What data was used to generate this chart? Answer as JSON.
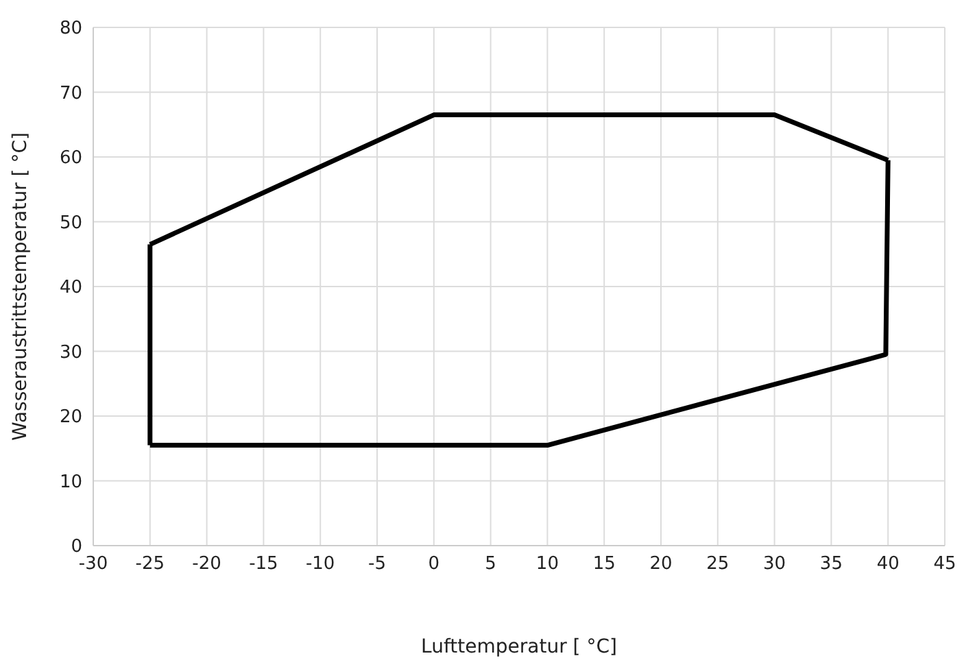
{
  "chart_data": {
    "type": "line",
    "xlabel": "Lufttemperatur [ °C]",
    "ylabel": "Wasseraustrittstemperatur [ °C]",
    "series": [
      {
        "color": "#000000",
        "x": [
          -25,
          0,
          30,
          40
        ],
        "values": [
          46.5,
          66.5,
          66.5,
          59.5
        ]
      },
      {
        "color": "#000000",
        "x": [
          -25,
          10,
          39.8,
          40
        ],
        "values": [
          15.5,
          15.5,
          29.5,
          59.5
        ]
      },
      {
        "color": "#000000",
        "x": [
          -25,
          -25
        ],
        "values": [
          15.5,
          46.5
        ]
      }
    ],
    "xlim": [
      -30,
      45
    ],
    "xticks": [
      -30,
      -25,
      -20,
      -15,
      -10,
      -5,
      0,
      5,
      10,
      15,
      20,
      25,
      30,
      35,
      40,
      45
    ],
    "ylim": [
      0,
      80
    ],
    "yticks": [
      0,
      10,
      20,
      30,
      40,
      50,
      60,
      70,
      80
    ],
    "grid": true,
    "legend": false,
    "marker": "none",
    "line_style": "solid"
  }
}
